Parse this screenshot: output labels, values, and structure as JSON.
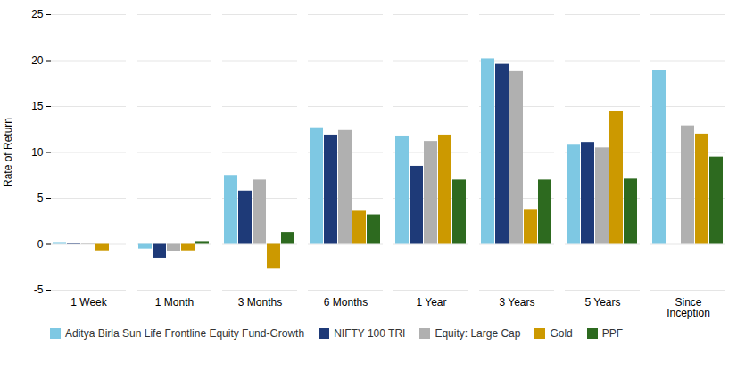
{
  "chart_data": {
    "type": "bar",
    "categories": [
      "1 Week",
      "1 Month",
      "3 Months",
      "6 Months",
      "1 Year",
      "3 Years",
      "5 Years",
      "Since\nInception"
    ],
    "series": [
      {
        "name": "Aditya Birla Sun Life Frontline Equity Fund-Growth",
        "color": "#7ec8e3",
        "values": [
          0.2,
          -0.5,
          7.5,
          12.7,
          11.8,
          20.2,
          10.8,
          18.9
        ]
      },
      {
        "name": "NIFTY 100 TRI",
        "color": "#1e3a78",
        "values": [
          0.1,
          -1.5,
          5.8,
          11.9,
          8.5,
          19.6,
          11.1,
          null
        ]
      },
      {
        "name": "Equity: Large Cap",
        "color": "#b0b0b0",
        "values": [
          0.1,
          -0.8,
          7.0,
          12.4,
          11.2,
          18.8,
          10.5,
          12.9
        ]
      },
      {
        "name": "Gold",
        "color": "#cc9900",
        "values": [
          -0.7,
          -0.7,
          -2.7,
          3.6,
          11.9,
          3.8,
          14.5,
          12.0
        ]
      },
      {
        "name": "PPF",
        "color": "#2d6a1f",
        "values": [
          null,
          0.3,
          1.3,
          3.2,
          7.0,
          7.0,
          7.1,
          9.5
        ]
      }
    ],
    "ylabel": "Rate of Return",
    "ylim": [
      -5,
      25
    ],
    "yticks": [
      -5,
      0,
      5,
      10,
      15,
      20,
      25
    ],
    "grid": true,
    "legend": "bottom"
  }
}
